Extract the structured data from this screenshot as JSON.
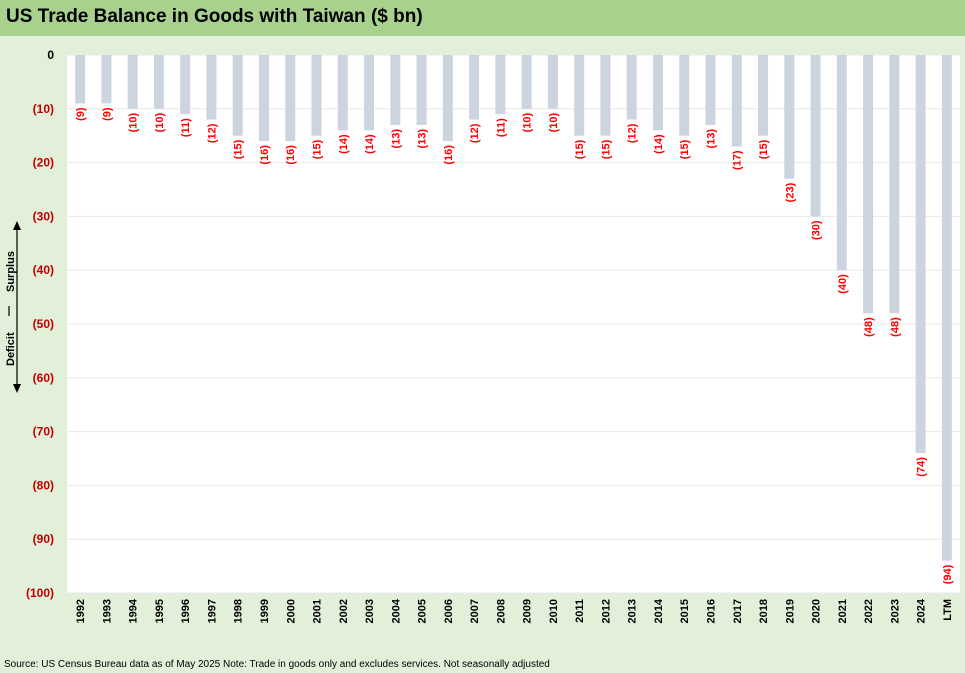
{
  "title": "US Trade Balance in Goods with Taiwan ($ bn)",
  "source": "Source: US Census Bureau data as of May 2025 Note: Trade in goods only and excludes services. Not seasonally adjusted",
  "side_labels": {
    "surplus": "Surplus",
    "deficit": "Deficit",
    "separator": "|"
  },
  "colors": {
    "title_bar": "#a9d18e",
    "background": "#e2efd9",
    "bar": "#ccd5df",
    "data_label": "#ff0000",
    "negative_tick": "#c00000",
    "zero_tick": "#000000"
  },
  "chart_data": {
    "type": "bar",
    "title": "US Trade Balance in Goods with Taiwan ($ bn)",
    "xlabel": "",
    "ylabel": "",
    "ylim": [
      -100,
      0
    ],
    "y_ticks": [
      0,
      -10,
      -20,
      -30,
      -40,
      -50,
      -60,
      -70,
      -80,
      -90,
      -100
    ],
    "y_tick_labels": [
      "0",
      "(10)",
      "(20)",
      "(30)",
      "(40)",
      "(50)",
      "(60)",
      "(70)",
      "(80)",
      "(90)",
      "(100)"
    ],
    "grid": true,
    "categories": [
      "1992",
      "1993",
      "1994",
      "1995",
      "1996",
      "1997",
      "1998",
      "1999",
      "2000",
      "2001",
      "2002",
      "2003",
      "2004",
      "2005",
      "2006",
      "2007",
      "2008",
      "2009",
      "2010",
      "2011",
      "2012",
      "2013",
      "2014",
      "2015",
      "2016",
      "2017",
      "2018",
      "2019",
      "2020",
      "2021",
      "2022",
      "2023",
      "2024",
      "LTM"
    ],
    "values": [
      -9,
      -9,
      -10,
      -10,
      -11,
      -12,
      -15,
      -16,
      -16,
      -15,
      -14,
      -14,
      -13,
      -13,
      -16,
      -12,
      -11,
      -10,
      -10,
      -15,
      -15,
      -12,
      -14,
      -15,
      -13,
      -17,
      -15,
      -23,
      -30,
      -40,
      -48,
      -48,
      -74,
      -94
    ],
    "data_labels": [
      "(9)",
      "(9)",
      "(10)",
      "(10)",
      "(11)",
      "(12)",
      "(15)",
      "(16)",
      "(16)",
      "(15)",
      "(14)",
      "(14)",
      "(13)",
      "(13)",
      "(16)",
      "(12)",
      "(11)",
      "(10)",
      "(10)",
      "(15)",
      "(15)",
      "(12)",
      "(14)",
      "(15)",
      "(13)",
      "(17)",
      "(15)",
      "(23)",
      "(30)",
      "(40)",
      "(48)",
      "(48)",
      "(74)",
      "(94)"
    ]
  }
}
